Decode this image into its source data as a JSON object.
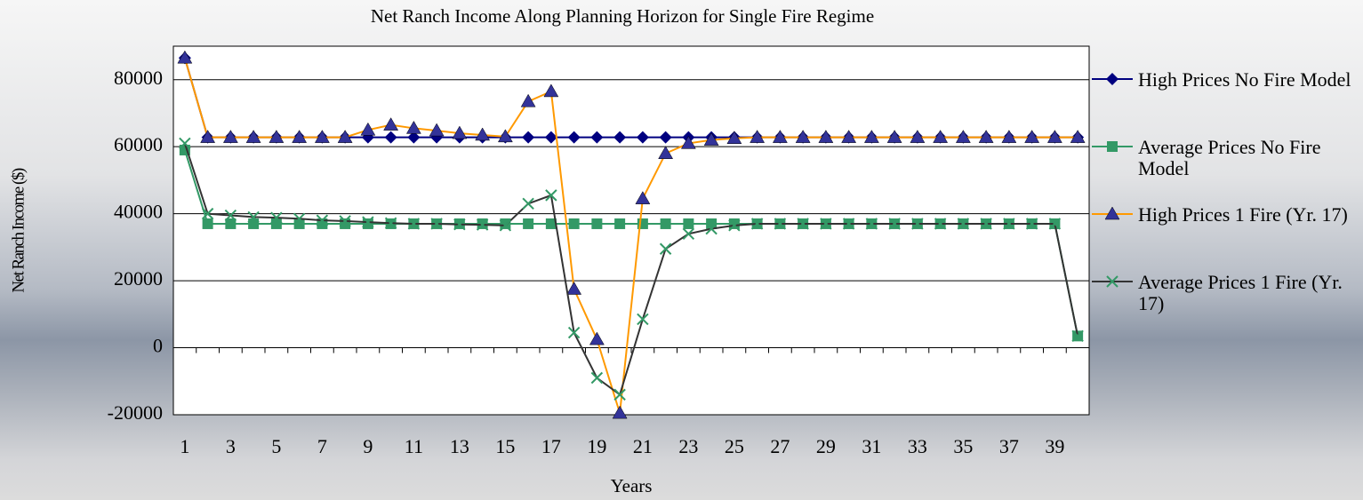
{
  "chart_data": {
    "type": "line",
    "title": "Net Ranch Income Along Planning Horizon for Single Fire Regime",
    "x_label": "Years",
    "y_label": "Net Ranch Income ($)",
    "categories": [
      1,
      null,
      3,
      null,
      5,
      null,
      7,
      null,
      9,
      null,
      11,
      null,
      13,
      null,
      15,
      null,
      17,
      null,
      19,
      null,
      21,
      null,
      23,
      null,
      25,
      null,
      27,
      null,
      29,
      null,
      31,
      null,
      33,
      null,
      35,
      null,
      37,
      null,
      39,
      null
    ],
    "ylim": [
      -20000,
      90000
    ],
    "yticks": [
      -20000,
      0,
      20000,
      40000,
      60000,
      80000
    ],
    "grid": true,
    "legend": "right",
    "series": [
      {
        "name": "High Prices No Fire Model",
        "color": "#000080",
        "marker": "diamond",
        "marker_color": "#000080",
        "values": [
          86500,
          62800,
          62800,
          62800,
          62800,
          62800,
          62800,
          62800,
          62800,
          62800,
          62800,
          62800,
          62800,
          62800,
          62800,
          62800,
          62800,
          62800,
          62800,
          62800,
          62800,
          62800,
          62800,
          62800,
          62800,
          62800,
          62800,
          62800,
          62800,
          62800,
          62800,
          62800,
          62800,
          62800,
          62800,
          62800,
          62800,
          62800,
          62800,
          62800
        ]
      },
      {
        "name": "Average Prices No Fire Model",
        "color": "#339966",
        "marker": "square",
        "marker_color": "#339966",
        "values": [
          59000,
          37000,
          37000,
          37000,
          37000,
          37000,
          37000,
          37000,
          37000,
          37000,
          37000,
          37000,
          37000,
          37000,
          37000,
          37000,
          37000,
          37000,
          37000,
          37000,
          37000,
          37000,
          37000,
          37000,
          37000,
          37000,
          37000,
          37000,
          37000,
          37000,
          37000,
          37000,
          37000,
          37000,
          37000,
          37000,
          37000,
          37000,
          37000,
          3500
        ]
      },
      {
        "name": "High Prices 1 Fire (Yr. 17)",
        "color": "#ff9900",
        "marker": "triangle",
        "marker_color": "#333399",
        "values": [
          86500,
          62800,
          62800,
          62800,
          62800,
          62800,
          62800,
          62800,
          65000,
          66500,
          65500,
          64800,
          64000,
          63500,
          63000,
          73500,
          76500,
          17500,
          2500,
          -19500,
          44500,
          58000,
          61000,
          62000,
          62500,
          62800,
          62800,
          62800,
          62800,
          62800,
          62800,
          62800,
          62800,
          62800,
          62800,
          62800,
          62800,
          62800,
          62800,
          62800
        ]
      },
      {
        "name": "Average Prices 1 Fire (Yr. 17)",
        "color": "#333333",
        "marker": "x",
        "marker_color": "#339966",
        "values": [
          61000,
          40000,
          39500,
          39000,
          38800,
          38500,
          38000,
          37800,
          37500,
          37200,
          37000,
          37000,
          36800,
          36700,
          36500,
          43000,
          45500,
          4500,
          -9000,
          -14000,
          8500,
          29500,
          34000,
          35500,
          36500,
          37000,
          37000,
          37000,
          37000,
          37000,
          37000,
          37000,
          37000,
          37000,
          37000,
          37000,
          37000,
          37000,
          37000,
          3500
        ]
      }
    ]
  }
}
